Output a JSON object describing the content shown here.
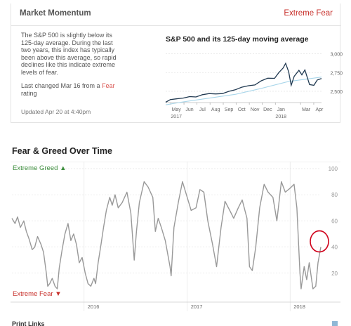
{
  "card": {
    "title": "Market Momentum",
    "rating": "Extreme Fear",
    "description": "The S&P 500 is slightly below its 125-day average. During the last two years, this index has typically been above this average, so rapid declines like this indicate extreme levels of fear.",
    "last_changed_prefix": "Last changed Mar 16 from a ",
    "last_changed_rating": "Fear",
    "last_changed_suffix": " rating",
    "updated": "Updated Apr 20 at 4:40pm"
  },
  "fg_section": {
    "title": "Fear & Greed Over Time",
    "greed_label": "Extreme Greed",
    "fear_label": "Extreme Fear"
  },
  "footer_partial": "Print Links",
  "colors": {
    "accent_red": "#c7302b",
    "greed_green": "#3f8f3f",
    "sp_line": "#1f3850",
    "ma_line": "#a9d6ea",
    "fg_line": "#999999",
    "highlight_circle": "#d0021b"
  },
  "chart_data": [
    {
      "type": "line",
      "title": "S&P 500 and its 125-day moving average",
      "x_ticks": [
        "May",
        "Jun",
        "Jul",
        "Aug",
        "Sep",
        "Oct",
        "Nov",
        "Dec",
        "Jan",
        "Mar",
        "Apr"
      ],
      "x_year_labels": [
        "2017",
        "2018"
      ],
      "y_ticks": [
        "3,000",
        "2,750",
        "2,500"
      ],
      "ylim": [
        2350,
        3080
      ],
      "x_range": [
        "2017-04-20",
        "2018-04-20"
      ],
      "series": [
        {
          "values": [
            [
              "2017-04-20",
              2355
            ],
            [
              "2017-05-01",
              2390
            ],
            [
              "2017-05-15",
              2400
            ],
            [
              "2017-05-31",
              2410
            ],
            [
              "2017-06-15",
              2430
            ],
            [
              "2017-06-30",
              2425
            ],
            [
              "2017-07-15",
              2455
            ],
            [
              "2017-07-31",
              2470
            ],
            [
              "2017-08-15",
              2465
            ],
            [
              "2017-08-31",
              2470
            ],
            [
              "2017-09-15",
              2500
            ],
            [
              "2017-09-30",
              2520
            ],
            [
              "2017-10-15",
              2555
            ],
            [
              "2017-10-31",
              2575
            ],
            [
              "2017-11-15",
              2585
            ],
            [
              "2017-11-30",
              2640
            ],
            [
              "2017-12-15",
              2675
            ],
            [
              "2017-12-31",
              2673
            ],
            [
              "2018-01-10",
              2750
            ],
            [
              "2018-01-20",
              2810
            ],
            [
              "2018-01-26",
              2872
            ],
            [
              "2018-02-02",
              2760
            ],
            [
              "2018-02-08",
              2580
            ],
            [
              "2018-02-15",
              2700
            ],
            [
              "2018-02-26",
              2780
            ],
            [
              "2018-03-05",
              2720
            ],
            [
              "2018-03-12",
              2785
            ],
            [
              "2018-03-23",
              2590
            ],
            [
              "2018-04-02",
              2580
            ],
            [
              "2018-04-10",
              2650
            ],
            [
              "2018-04-20",
              2670
            ]
          ]
        },
        {
          "values": [
            [
              "2017-04-20",
              2320
            ],
            [
              "2017-06-01",
              2360
            ],
            [
              "2017-08-01",
              2410
            ],
            [
              "2017-10-01",
              2460
            ],
            [
              "2017-12-01",
              2540
            ],
            [
              "2018-02-01",
              2630
            ],
            [
              "2018-04-20",
              2690
            ]
          ]
        }
      ]
    },
    {
      "type": "line",
      "title": "Fear & Greed Over Time",
      "y_ticks": [
        100,
        80,
        60,
        40,
        20
      ],
      "ylim": [
        0,
        100
      ],
      "x_range": [
        "2015-04-20",
        "2018-04-20"
      ],
      "x_ticks": [
        "2016",
        "2017",
        "2018"
      ],
      "annotations": [
        "Extreme Greed",
        "Extreme Fear"
      ],
      "series": [
        {
          "values": [
            [
              "2015-04-20",
              62
            ],
            [
              "2015-05-01",
              58
            ],
            [
              "2015-05-10",
              63
            ],
            [
              "2015-05-20",
              55
            ],
            [
              "2015-06-01",
              60
            ],
            [
              "2015-06-10",
              52
            ],
            [
              "2015-06-20",
              46
            ],
            [
              "2015-07-01",
              38
            ],
            [
              "2015-07-10",
              40
            ],
            [
              "2015-07-20",
              48
            ],
            [
              "2015-08-01",
              42
            ],
            [
              "2015-08-10",
              36
            ],
            [
              "2015-08-20",
              20
            ],
            [
              "2015-08-25",
              10
            ],
            [
              "2015-09-01",
              12
            ],
            [
              "2015-09-10",
              16
            ],
            [
              "2015-09-20",
              10
            ],
            [
              "2015-09-28",
              8
            ],
            [
              "2015-10-05",
              24
            ],
            [
              "2015-10-15",
              38
            ],
            [
              "2015-10-25",
              50
            ],
            [
              "2015-11-05",
              58
            ],
            [
              "2015-11-15",
              45
            ],
            [
              "2015-11-25",
              50
            ],
            [
              "2015-12-05",
              42
            ],
            [
              "2015-12-15",
              28
            ],
            [
              "2015-12-25",
              32
            ],
            [
              "2016-01-05",
              20
            ],
            [
              "2016-01-15",
              12
            ],
            [
              "2016-01-25",
              10
            ],
            [
              "2016-02-05",
              16
            ],
            [
              "2016-02-11",
              12
            ],
            [
              "2016-02-20",
              28
            ],
            [
              "2016-03-01",
              42
            ],
            [
              "2016-03-10",
              55
            ],
            [
              "2016-03-20",
              68
            ],
            [
              "2016-04-01",
              78
            ],
            [
              "2016-04-10",
              72
            ],
            [
              "2016-04-20",
              80
            ],
            [
              "2016-05-01",
              70
            ],
            [
              "2016-05-15",
              74
            ],
            [
              "2016-06-01",
              82
            ],
            [
              "2016-06-15",
              66
            ],
            [
              "2016-06-27",
              30
            ],
            [
              "2016-07-05",
              52
            ],
            [
              "2016-07-15",
              74
            ],
            [
              "2016-08-01",
              90
            ],
            [
              "2016-08-15",
              86
            ],
            [
              "2016-09-01",
              78
            ],
            [
              "2016-09-10",
              52
            ],
            [
              "2016-09-20",
              62
            ],
            [
              "2016-10-01",
              55
            ],
            [
              "2016-10-15",
              45
            ],
            [
              "2016-11-01",
              25
            ],
            [
              "2016-11-05",
              18
            ],
            [
              "2016-11-15",
              55
            ],
            [
              "2016-12-01",
              75
            ],
            [
              "2016-12-15",
              90
            ],
            [
              "2017-01-01",
              78
            ],
            [
              "2017-01-15",
              68
            ],
            [
              "2017-02-01",
              70
            ],
            [
              "2017-02-15",
              84
            ],
            [
              "2017-03-01",
              82
            ],
            [
              "2017-03-15",
              60
            ],
            [
              "2017-04-01",
              42
            ],
            [
              "2017-04-15",
              25
            ],
            [
              "2017-05-01",
              55
            ],
            [
              "2017-05-15",
              75
            ],
            [
              "2017-06-01",
              68
            ],
            [
              "2017-06-15",
              62
            ],
            [
              "2017-07-01",
              70
            ],
            [
              "2017-07-15",
              76
            ],
            [
              "2017-08-01",
              62
            ],
            [
              "2017-08-10",
              25
            ],
            [
              "2017-08-20",
              22
            ],
            [
              "2017-09-01",
              40
            ],
            [
              "2017-09-15",
              70
            ],
            [
              "2017-10-01",
              88
            ],
            [
              "2017-10-15",
              82
            ],
            [
              "2017-11-01",
              78
            ],
            [
              "2017-11-15",
              60
            ],
            [
              "2017-12-01",
              90
            ],
            [
              "2017-12-15",
              82
            ],
            [
              "2018-01-01",
              85
            ],
            [
              "2018-01-15",
              88
            ],
            [
              "2018-01-25",
              70
            ],
            [
              "2018-02-05",
              20
            ],
            [
              "2018-02-09",
              8
            ],
            [
              "2018-02-20",
              25
            ],
            [
              "2018-03-01",
              15
            ],
            [
              "2018-03-10",
              28
            ],
            [
              "2018-03-23",
              8
            ],
            [
              "2018-04-02",
              10
            ],
            [
              "2018-04-10",
              28
            ],
            [
              "2018-04-20",
              40
            ]
          ]
        }
      ]
    }
  ]
}
